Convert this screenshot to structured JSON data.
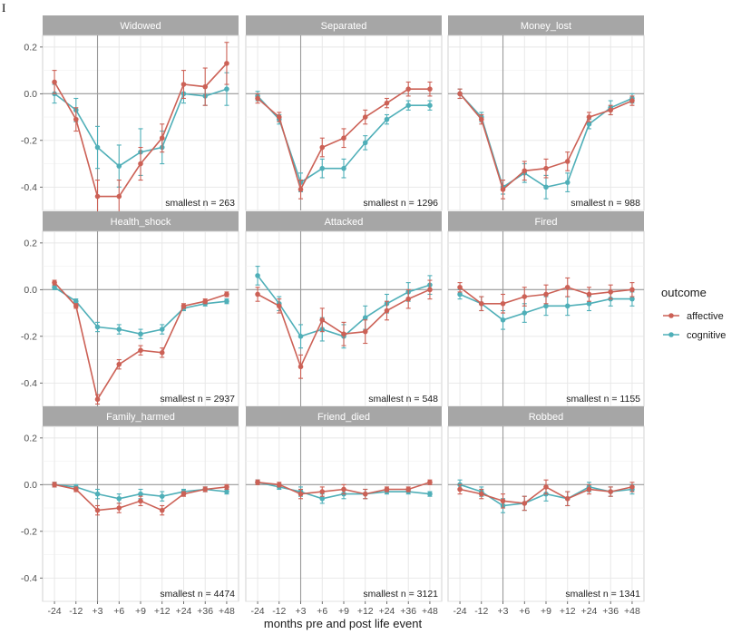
{
  "chart_data": {
    "type": "line",
    "xlabel": "months pre and post life event",
    "x_categories": [
      "-24",
      "-12",
      "+3",
      "+6",
      "+9",
      "+12",
      "+24",
      "+36",
      "+48"
    ],
    "event_line_x": "+3",
    "ylim": [
      -0.5,
      0.25
    ],
    "yticks": [
      0.2,
      0.0,
      -0.2,
      -0.4
    ],
    "y_tick_labels": [
      "0.2",
      "0.0",
      "-0.2",
      "-0.4"
    ],
    "grid": true,
    "legend": {
      "title": "outcome",
      "position": "right",
      "entries": [
        {
          "label": "affective",
          "color": "#cc6156"
        },
        {
          "label": "cognitive",
          "color": "#4fafb8"
        }
      ]
    },
    "panels": [
      {
        "title": "Widowed",
        "note": "smallest n = 263",
        "series": [
          {
            "name": "affective",
            "values": [
              0.05,
              -0.11,
              -0.44,
              -0.44,
              -0.3,
              -0.19,
              0.04,
              0.03,
              0.13
            ],
            "errors": [
              0.05,
              0.05,
              0.07,
              0.07,
              0.07,
              0.06,
              0.06,
              0.08,
              0.09
            ]
          },
          {
            "name": "cognitive",
            "values": [
              0.0,
              -0.07,
              -0.23,
              -0.31,
              -0.25,
              -0.23,
              0.0,
              -0.01,
              0.02
            ],
            "errors": [
              0.04,
              0.05,
              0.09,
              0.09,
              0.1,
              0.07,
              0.04,
              0.04,
              0.07
            ]
          }
        ]
      },
      {
        "title": "Separated",
        "note": "smallest n = 1296",
        "series": [
          {
            "name": "affective",
            "values": [
              -0.02,
              -0.1,
              -0.41,
              -0.23,
              -0.19,
              -0.1,
              -0.04,
              0.02,
              0.02
            ],
            "errors": [
              0.02,
              0.02,
              0.04,
              0.04,
              0.04,
              0.03,
              0.02,
              0.03,
              0.03
            ]
          },
          {
            "name": "cognitive",
            "values": [
              -0.01,
              -0.11,
              -0.38,
              -0.32,
              -0.32,
              -0.21,
              -0.11,
              -0.05,
              -0.05
            ],
            "errors": [
              0.02,
              0.02,
              0.04,
              0.04,
              0.04,
              0.03,
              0.02,
              0.02,
              0.02
            ]
          }
        ]
      },
      {
        "title": "Money_lost",
        "note": "smallest n = 988",
        "series": [
          {
            "name": "affective",
            "values": [
              0.0,
              -0.11,
              -0.41,
              -0.33,
              -0.32,
              -0.29,
              -0.1,
              -0.07,
              -0.03
            ],
            "errors": [
              0.02,
              0.02,
              0.04,
              0.04,
              0.04,
              0.04,
              0.02,
              0.02,
              0.02
            ]
          },
          {
            "name": "cognitive",
            "values": [
              0.0,
              -0.1,
              -0.4,
              -0.34,
              -0.4,
              -0.38,
              -0.13,
              -0.06,
              -0.02
            ],
            "errors": [
              0.02,
              0.02,
              0.03,
              0.04,
              0.05,
              0.04,
              0.02,
              0.03,
              0.02
            ]
          }
        ]
      },
      {
        "title": "Health_shock",
        "note": "smallest n = 2937",
        "series": [
          {
            "name": "affective",
            "values": [
              0.03,
              -0.07,
              -0.47,
              -0.32,
              -0.26,
              -0.27,
              -0.07,
              -0.05,
              -0.02
            ],
            "errors": [
              0.01,
              0.01,
              0.02,
              0.02,
              0.02,
              0.02,
              0.01,
              0.01,
              0.01
            ]
          },
          {
            "name": "cognitive",
            "values": [
              0.01,
              -0.05,
              -0.16,
              -0.17,
              -0.19,
              -0.17,
              -0.08,
              -0.06,
              -0.05
            ],
            "errors": [
              0.01,
              0.01,
              0.02,
              0.02,
              0.02,
              0.02,
              0.01,
              0.01,
              0.01
            ]
          }
        ]
      },
      {
        "title": "Attacked",
        "note": "smallest n = 548",
        "series": [
          {
            "name": "affective",
            "values": [
              -0.02,
              -0.07,
              -0.33,
              -0.13,
              -0.19,
              -0.18,
              -0.09,
              -0.04,
              0.0
            ],
            "errors": [
              0.03,
              0.03,
              0.05,
              0.05,
              0.05,
              0.05,
              0.04,
              0.04,
              0.04
            ]
          },
          {
            "name": "cognitive",
            "values": [
              0.06,
              -0.06,
              -0.2,
              -0.17,
              -0.2,
              -0.12,
              -0.06,
              -0.01,
              0.02
            ],
            "errors": [
              0.04,
              0.03,
              0.05,
              0.05,
              0.05,
              0.05,
              0.04,
              0.04,
              0.04
            ]
          }
        ]
      },
      {
        "title": "Fired",
        "note": "smallest n = 1155",
        "series": [
          {
            "name": "affective",
            "values": [
              0.01,
              -0.06,
              -0.06,
              -0.03,
              -0.02,
              0.01,
              -0.02,
              -0.01,
              0.0
            ],
            "errors": [
              0.02,
              0.03,
              0.04,
              0.04,
              0.04,
              0.04,
              0.03,
              0.03,
              0.03
            ]
          },
          {
            "name": "cognitive",
            "values": [
              -0.02,
              -0.06,
              -0.13,
              -0.1,
              -0.07,
              -0.07,
              -0.06,
              -0.04,
              -0.04
            ],
            "errors": [
              0.02,
              0.03,
              0.04,
              0.04,
              0.04,
              0.04,
              0.03,
              0.03,
              0.03
            ]
          }
        ]
      },
      {
        "title": "Family_harmed",
        "note": "smallest n = 4474",
        "series": [
          {
            "name": "affective",
            "values": [
              0.0,
              -0.02,
              -0.11,
              -0.1,
              -0.07,
              -0.11,
              -0.04,
              -0.02,
              -0.01
            ],
            "errors": [
              0.01,
              0.01,
              0.02,
              0.02,
              0.02,
              0.02,
              0.01,
              0.01,
              0.01
            ]
          },
          {
            "name": "cognitive",
            "values": [
              0.0,
              -0.01,
              -0.04,
              -0.06,
              -0.04,
              -0.05,
              -0.03,
              -0.02,
              -0.03
            ],
            "errors": [
              0.01,
              0.01,
              0.02,
              0.02,
              0.02,
              0.02,
              0.01,
              0.01,
              0.01
            ]
          }
        ]
      },
      {
        "title": "Friend_died",
        "note": "smallest n = 3121",
        "series": [
          {
            "name": "affective",
            "values": [
              0.01,
              0.0,
              -0.04,
              -0.03,
              -0.02,
              -0.04,
              -0.02,
              -0.02,
              0.01
            ],
            "errors": [
              0.01,
              0.01,
              0.02,
              0.02,
              0.02,
              0.02,
              0.01,
              0.01,
              0.01
            ]
          },
          {
            "name": "cognitive",
            "values": [
              0.01,
              -0.01,
              -0.03,
              -0.06,
              -0.04,
              -0.04,
              -0.03,
              -0.03,
              -0.04
            ],
            "errors": [
              0.01,
              0.01,
              0.02,
              0.02,
              0.02,
              0.02,
              0.01,
              0.01,
              0.01
            ]
          }
        ]
      },
      {
        "title": "Robbed",
        "note": "smallest n = 1341",
        "series": [
          {
            "name": "affective",
            "values": [
              -0.02,
              -0.04,
              -0.07,
              -0.08,
              -0.01,
              -0.06,
              -0.02,
              -0.03,
              -0.01
            ],
            "errors": [
              0.02,
              0.02,
              0.03,
              0.03,
              0.03,
              0.03,
              0.02,
              0.02,
              0.02
            ]
          },
          {
            "name": "cognitive",
            "values": [
              0.0,
              -0.03,
              -0.09,
              -0.08,
              -0.04,
              -0.06,
              -0.01,
              -0.03,
              -0.02
            ],
            "errors": [
              0.02,
              0.02,
              0.03,
              0.03,
              0.03,
              0.03,
              0.02,
              0.02,
              0.02
            ]
          }
        ]
      }
    ]
  }
}
